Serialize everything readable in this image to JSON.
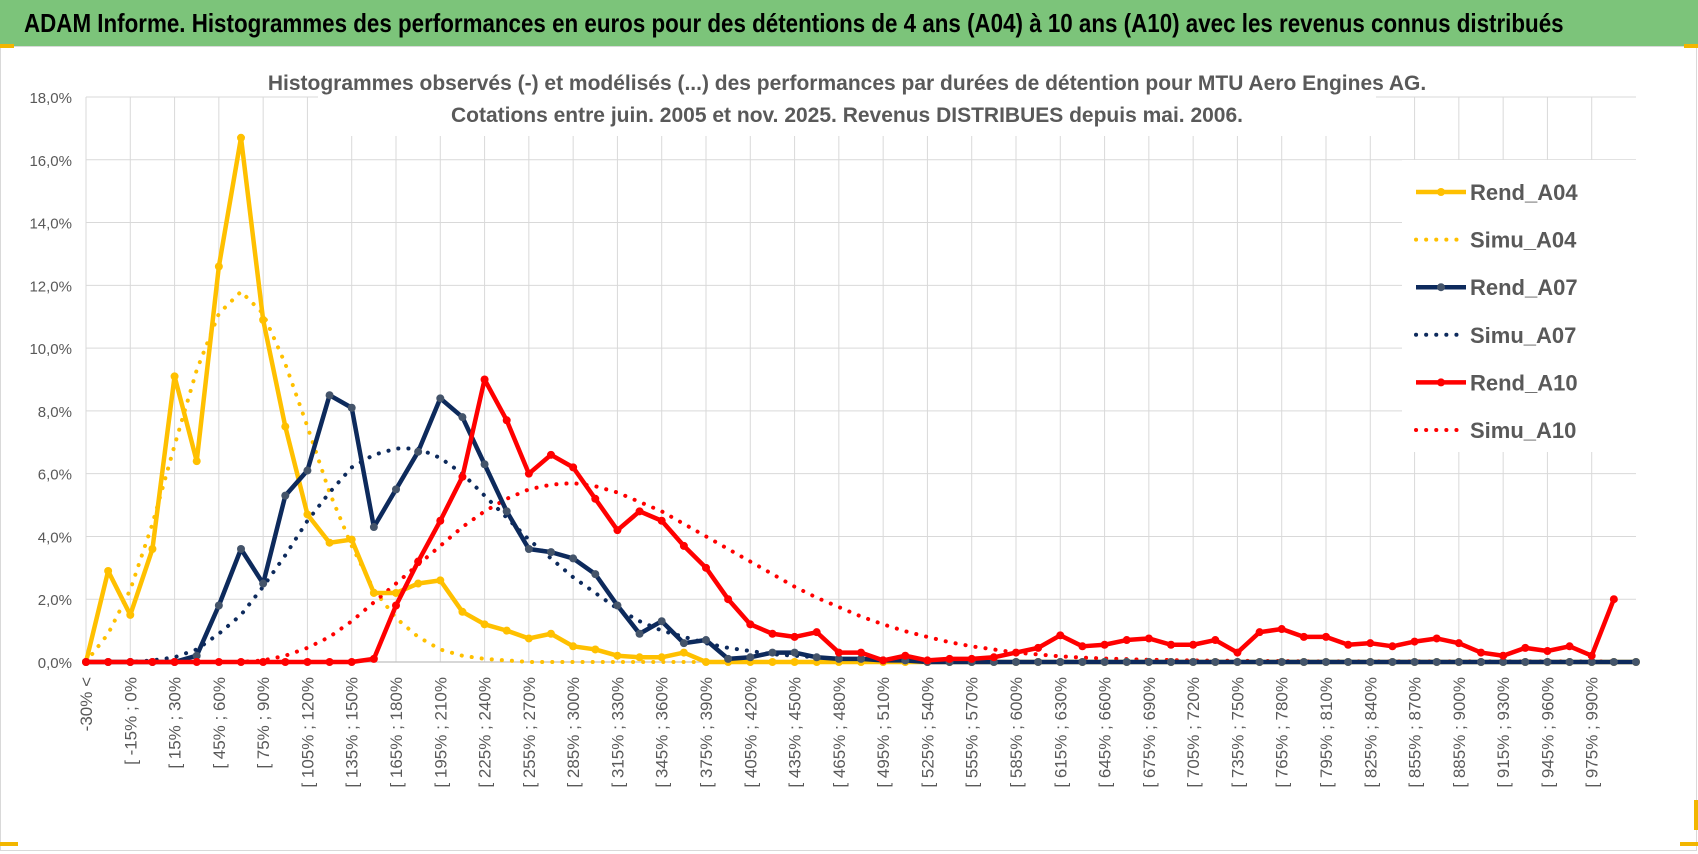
{
  "header": {
    "title": "ADAM Informe. Histogrammes des performances en euros pour des détentions de 4 ans (A04) à 10 ans (A10) avec les revenus connus distribués"
  },
  "colors": {
    "banner": "#7cc47a",
    "A04": "#ffc000",
    "A07": "#0d2a5c",
    "A10": "#ff0000",
    "grid": "#d9d9d9",
    "text": "#595959"
  },
  "chart_data": {
    "type": "line",
    "title_lines": [
      "Histogrammes observés (-) et modélisés (...) des performances par durées de détention pour MTU Aero Engines AG.",
      "Cotations entre juin. 2005 et nov. 2025. Revenus DISTRIBUES depuis mai. 2006."
    ],
    "xlabel": "",
    "ylabel": "",
    "ylim": [
      0,
      18
    ],
    "yticks": [
      "0,0%",
      "2,0%",
      "4,0%",
      "6,0%",
      "8,0%",
      "10,0%",
      "12,0%",
      "14,0%",
      "16,0%",
      "18,0%"
    ],
    "x_tick_labels": [
      "-30% <",
      "[ -15% ; 0%",
      "[ 15% ; 30%",
      "[ 45% ; 60%",
      "[ 75% ; 90%",
      "[ 105% ; 120%",
      "[ 135% ; 150%",
      "[ 165% ; 180%",
      "[ 195% ; 210%",
      "[ 225% ; 240%",
      "[ 255% ; 270%",
      "[ 285% ; 300%",
      "[ 315% ; 330%",
      "[ 345% ; 360%",
      "[ 375% ; 390%",
      "[ 405% ; 420%",
      "[ 435% ; 450%",
      "[ 465% ; 480%",
      "[ 495% ; 510%",
      "[ 525% ; 540%",
      "[ 555% ; 570%",
      "[ 585% ; 600%",
      "[ 615% ; 630%",
      "[ 645% ; 660%",
      "[ 675% ; 690%",
      "[ 705% ; 720%",
      "[ 735% ; 750%",
      "[ 765% ; 780%",
      "[ 795% ; 810%",
      "[ 825% ; 840%",
      "[ 855% ; 870%",
      "[ 885% ; 900%",
      "[ 915% ; 930%",
      "[ 945% ; 960%",
      "[ 975% ; 990%"
    ],
    "series": [
      {
        "name": "Rend_A04",
        "style": "solid",
        "color": "#ffc000",
        "values": [
          0,
          2.9,
          1.5,
          3.6,
          9.1,
          6.4,
          12.6,
          16.7,
          10.9,
          7.5,
          4.7,
          3.8,
          3.9,
          2.2,
          2.2,
          2.5,
          2.6,
          1.6,
          1.2,
          1.0,
          0.75,
          0.9,
          0.5,
          0.4,
          0.2,
          0.15,
          0.15,
          0.3,
          0,
          0,
          0,
          0,
          0,
          0,
          0,
          0,
          0,
          0,
          0,
          0,
          0,
          0,
          0,
          0,
          0,
          0,
          0,
          0,
          0,
          0,
          0,
          0,
          0,
          0,
          0,
          0,
          0,
          0,
          0,
          0,
          0,
          0,
          0,
          0,
          0,
          0,
          0,
          0,
          0,
          0,
          0
        ]
      },
      {
        "name": "Simu_A04",
        "style": "dotted",
        "color": "#ffc000",
        "values": [
          0,
          0.9,
          2.3,
          4.4,
          6.9,
          9.3,
          11.1,
          11.8,
          11.1,
          9.5,
          7.5,
          5.4,
          3.7,
          2.3,
          1.4,
          0.8,
          0.4,
          0.2,
          0.1,
          0.05,
          0,
          0,
          0,
          0,
          0,
          0,
          0,
          0,
          0,
          0,
          0,
          0,
          0,
          0,
          0,
          0,
          0,
          0,
          0,
          0,
          0,
          0,
          0,
          0,
          0,
          0,
          0,
          0,
          0,
          0,
          0,
          0,
          0,
          0,
          0,
          0,
          0,
          0,
          0,
          0,
          0,
          0,
          0,
          0,
          0,
          0,
          0,
          0,
          0,
          0,
          0
        ]
      },
      {
        "name": "Rend_A07",
        "style": "solid",
        "color": "#0d2a5c",
        "values": [
          0,
          0,
          0,
          0,
          0,
          0.2,
          1.8,
          3.6,
          2.5,
          5.3,
          6.1,
          8.5,
          8.1,
          4.3,
          5.5,
          6.7,
          8.4,
          7.8,
          6.3,
          4.8,
          3.6,
          3.5,
          3.3,
          2.8,
          1.8,
          0.9,
          1.3,
          0.6,
          0.7,
          0.1,
          0.15,
          0.3,
          0.3,
          0.15,
          0.1,
          0.1,
          0.05,
          0.05,
          0,
          0,
          0,
          0,
          0,
          0,
          0,
          0,
          0,
          0,
          0,
          0,
          0,
          0,
          0,
          0,
          0,
          0,
          0,
          0,
          0,
          0,
          0,
          0,
          0,
          0,
          0,
          0,
          0,
          0,
          0,
          0,
          0
        ]
      },
      {
        "name": "Simu_A07",
        "style": "dotted",
        "color": "#0d2a5c",
        "values": [
          0,
          0,
          0,
          0.05,
          0.15,
          0.4,
          0.9,
          1.5,
          2.4,
          3.4,
          4.5,
          5.4,
          6.2,
          6.6,
          6.8,
          6.8,
          6.5,
          6.0,
          5.3,
          4.6,
          3.9,
          3.3,
          2.7,
          2.2,
          1.7,
          1.3,
          1.0,
          0.8,
          0.6,
          0.45,
          0.35,
          0.25,
          0.2,
          0.15,
          0.1,
          0.08,
          0.05,
          0.04,
          0.03,
          0.02,
          0.01,
          0,
          0,
          0,
          0,
          0,
          0,
          0,
          0,
          0,
          0,
          0,
          0,
          0,
          0,
          0,
          0,
          0,
          0,
          0,
          0,
          0,
          0,
          0,
          0,
          0,
          0,
          0,
          0,
          0,
          0
        ]
      },
      {
        "name": "Rend_A10",
        "style": "solid",
        "color": "#ff0000",
        "values": [
          0,
          0,
          0,
          0,
          0,
          0,
          0,
          0,
          0,
          0,
          0,
          0,
          0,
          0.1,
          1.8,
          3.2,
          4.5,
          5.9,
          9.0,
          7.7,
          6.0,
          6.6,
          6.2,
          5.2,
          4.2,
          4.8,
          4.5,
          3.7,
          3.0,
          2.0,
          1.2,
          0.9,
          0.8,
          0.95,
          0.3,
          0.3,
          0.05,
          0.2,
          0.05,
          0.1,
          0.1,
          0.15,
          0.3,
          0.45,
          0.85,
          0.5,
          0.55,
          0.7,
          0.75,
          0.55,
          0.55,
          0.7,
          0.3,
          0.95,
          1.05,
          0.8,
          0.8,
          0.55,
          0.6,
          0.5,
          0.65,
          0.75,
          0.6,
          0.3,
          0.2,
          0.45,
          0.35,
          0.5,
          0.2,
          2.0
        ]
      },
      {
        "name": "Simu_A10",
        "style": "dotted",
        "color": "#ff0000",
        "values": [
          0,
          0,
          0,
          0,
          0,
          0,
          0,
          0,
          0.05,
          0.2,
          0.45,
          0.8,
          1.3,
          1.9,
          2.5,
          3.1,
          3.7,
          4.3,
          4.8,
          5.2,
          5.5,
          5.65,
          5.7,
          5.6,
          5.4,
          5.1,
          4.8,
          4.4,
          4.0,
          3.6,
          3.2,
          2.8,
          2.4,
          2.05,
          1.75,
          1.45,
          1.2,
          0.98,
          0.8,
          0.63,
          0.5,
          0.4,
          0.3,
          0.24,
          0.18,
          0.14,
          0.11,
          0.09,
          0.07,
          0.06,
          0.05,
          0.04,
          0.04,
          0.03,
          0.03,
          0.02,
          0.02,
          0.02,
          0.02,
          0.02,
          0.02,
          0.02,
          0.02,
          0.02,
          0.02,
          0.02,
          0.02,
          0.02,
          0.02,
          0.02
        ]
      }
    ],
    "legend": [
      "Rend_A04",
      "Simu_A04",
      "Rend_A07",
      "Simu_A07",
      "Rend_A10",
      "Simu_A10"
    ],
    "legend_position": "right",
    "grid": true
  }
}
